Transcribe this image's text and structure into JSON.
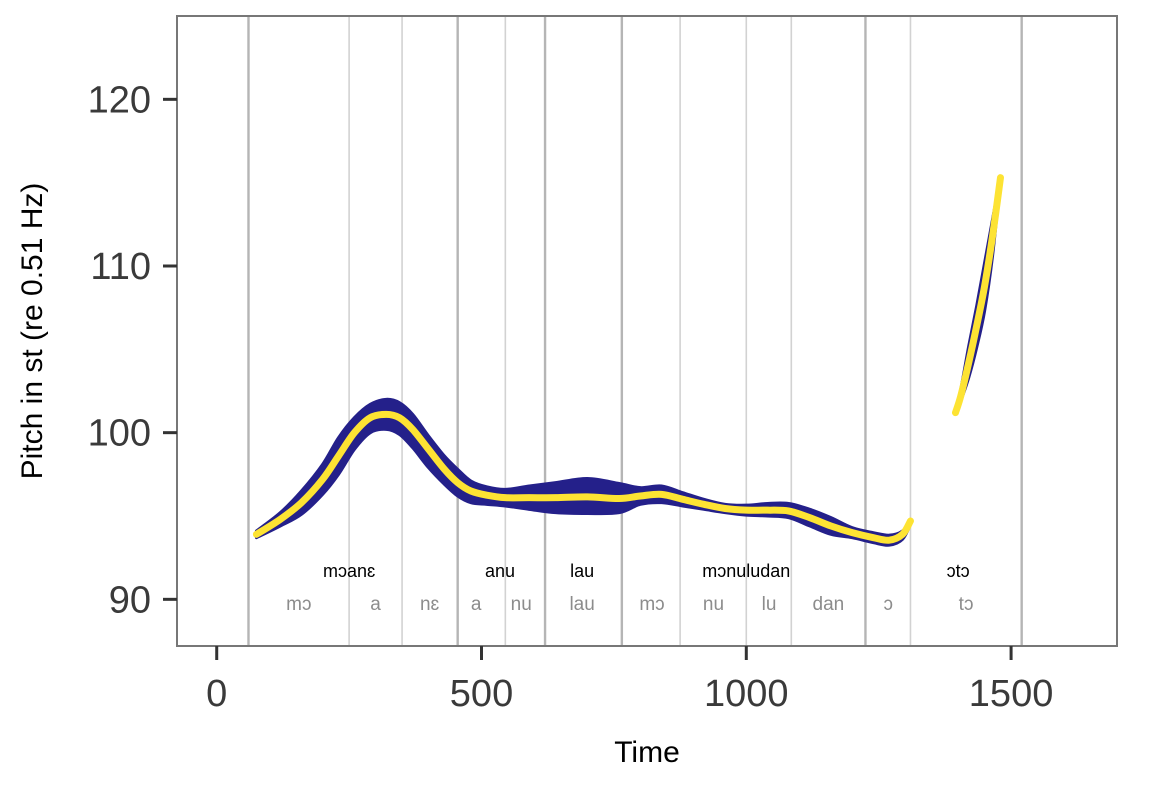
{
  "chart_data": {
    "type": "line",
    "title": "",
    "xlabel": "Time",
    "ylabel": "Pitch in st (re 0.51 Hz)",
    "xlim": [
      -75,
      1700
    ],
    "ylim": [
      87.2,
      125
    ],
    "x_ticks": [
      {
        "value": 0,
        "label": "0"
      },
      {
        "value": 500,
        "label": "500"
      },
      {
        "value": 1000,
        "label": "1000"
      },
      {
        "value": 1500,
        "label": "1500"
      }
    ],
    "y_ticks": [
      {
        "value": 90,
        "label": "90"
      },
      {
        "value": 100,
        "label": "100"
      },
      {
        "value": 110,
        "label": "110"
      },
      {
        "value": 120,
        "label": "120"
      }
    ],
    "grid": false,
    "colors": {
      "band": "#24208a",
      "mean_line": "#fde333",
      "word_boundary": "#b5b5b5",
      "syllable_boundary": "#d2d2d2",
      "panel_border": "#777777"
    },
    "word_boundaries": [
      60,
      455,
      620,
      765,
      1225,
      1520
    ],
    "syllable_boundaries": [
      250,
      350,
      545,
      875,
      1000,
      1085,
      1310
    ],
    "words": [
      {
        "label": "mɔanɛ",
        "x": 250
      },
      {
        "label": "anu",
        "x": 535
      },
      {
        "label": "lau",
        "x": 690
      },
      {
        "label": "mɔnuludan",
        "x": 1000
      },
      {
        "label": "ɔtɔ",
        "x": 1400
      }
    ],
    "syllables": [
      {
        "label": "mɔ",
        "x": 155
      },
      {
        "label": "a",
        "x": 300
      },
      {
        "label": "nɛ",
        "x": 402
      },
      {
        "label": "a",
        "x": 490
      },
      {
        "label": "nu",
        "x": 575
      },
      {
        "label": "lau",
        "x": 690
      },
      {
        "label": "mɔ",
        "x": 822
      },
      {
        "label": "nu",
        "x": 938
      },
      {
        "label": "lu",
        "x": 1043
      },
      {
        "label": "dan",
        "x": 1155
      },
      {
        "label": "ɔ",
        "x": 1268
      },
      {
        "label": "tɔ",
        "x": 1415
      }
    ],
    "series": [
      {
        "segment": 1,
        "x": [
          75,
          120,
          160,
          200,
          230,
          260,
          290,
          320,
          345,
          370,
          400,
          430,
          455,
          480,
          510,
          545,
          590,
          640,
          700,
          760,
          800,
          840,
          880,
          920,
          960,
          1000,
          1040,
          1080,
          1120,
          1160,
          1200,
          1240,
          1270,
          1295,
          1310
        ],
        "y": [
          93.9,
          94.8,
          95.8,
          97.2,
          98.6,
          100.0,
          100.9,
          101.1,
          100.9,
          100.2,
          99.0,
          97.8,
          97.0,
          96.5,
          96.25,
          96.1,
          96.1,
          96.1,
          96.15,
          96.05,
          96.2,
          96.3,
          96.0,
          95.7,
          95.45,
          95.35,
          95.35,
          95.3,
          94.9,
          94.4,
          94.0,
          93.7,
          93.55,
          93.9,
          94.7
        ],
        "upper": [
          94.1,
          95.2,
          96.5,
          98.1,
          99.7,
          100.9,
          101.7,
          102.0,
          101.8,
          101.1,
          99.8,
          98.6,
          97.8,
          97.1,
          96.75,
          96.6,
          96.8,
          97.0,
          97.25,
          96.95,
          96.7,
          96.8,
          96.4,
          96.0,
          95.7,
          95.65,
          95.75,
          95.75,
          95.4,
          94.9,
          94.3,
          94.0,
          93.85,
          94.1,
          94.8
        ],
        "lower": [
          93.7,
          94.4,
          95.1,
          96.3,
          97.5,
          99.0,
          100.0,
          100.2,
          99.9,
          99.1,
          97.9,
          96.9,
          96.2,
          95.8,
          95.7,
          95.6,
          95.4,
          95.2,
          95.15,
          95.2,
          95.7,
          95.8,
          95.6,
          95.4,
          95.2,
          95.05,
          95.0,
          94.9,
          94.4,
          93.9,
          93.7,
          93.4,
          93.25,
          93.6,
          94.5
        ]
      },
      {
        "segment": 2,
        "x": [
          1395,
          1405,
          1420,
          1435,
          1450,
          1465,
          1480
        ],
        "y": [
          101.2,
          102.2,
          104.2,
          106.4,
          108.8,
          111.8,
          115.3
        ],
        "upper": [
          101.3,
          102.6,
          105.2,
          107.6,
          110.2,
          112.8,
          115.4
        ],
        "lower": [
          101.1,
          101.9,
          103.3,
          105.1,
          107.3,
          110.6,
          115.2
        ]
      }
    ]
  }
}
